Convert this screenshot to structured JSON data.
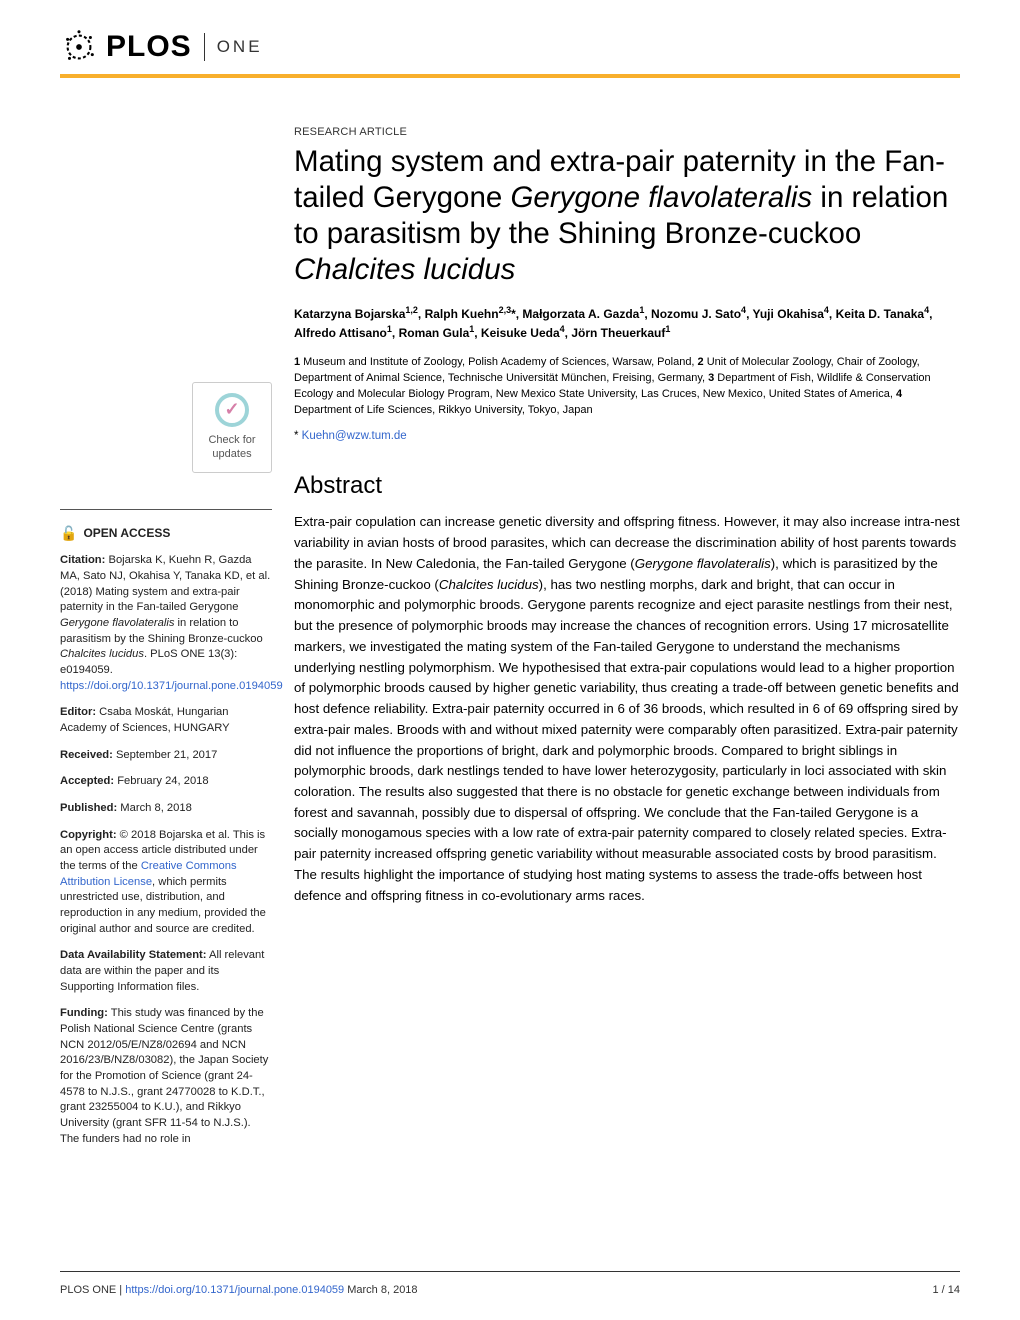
{
  "brand": {
    "plos": "PLOS",
    "one": "ONE",
    "accent_color": "#f8af2c"
  },
  "check_updates": {
    "line1": "Check for",
    "line2": "updates"
  },
  "open_access": "OPEN ACCESS",
  "citation": {
    "label": "Citation:",
    "text": " Bojarska K, Kuehn R, Gazda MA, Sato NJ, Okahisa Y, Tanaka KD, et al. (2018) Mating system and extra-pair paternity in the Fan-tailed Gerygone ",
    "italic1": "Gerygone flavolateralis",
    "text2": " in relation to parasitism by the Shining Bronze-cuckoo ",
    "italic2": "Chalcites lucidus",
    "text3": ". PLoS ONE 13(3): e0194059. ",
    "link": "https://doi.org/10.1371/journal.pone.0194059"
  },
  "editor": {
    "label": "Editor:",
    "text": " Csaba Moskát, Hungarian Academy of Sciences, HUNGARY"
  },
  "received": {
    "label": "Received:",
    "text": " September 21, 2017"
  },
  "accepted": {
    "label": "Accepted:",
    "text": " February 24, 2018"
  },
  "published": {
    "label": "Published:",
    "text": " March 8, 2018"
  },
  "copyright": {
    "label": "Copyright:",
    "text1": " © 2018 Bojarska et al. This is an open access article distributed under the terms of the ",
    "link": "Creative Commons Attribution License",
    "text2": ", which permits unrestricted use, distribution, and reproduction in any medium, provided the original author and source are credited."
  },
  "data_avail": {
    "label": "Data Availability Statement:",
    "text": " All relevant data are within the paper and its Supporting Information files."
  },
  "funding": {
    "label": "Funding:",
    "text": " This study was financed by the Polish National Science Centre (grants NCN 2012/05/E/NZ8/02694 and NCN 2016/23/B/NZ8/03082), the Japan Society for the Promotion of Science (grant 24-4578 to N.J.S., grant 24770028 to K.D.T., grant 23255004 to K.U.), and Rikkyo University (grant SFR 11-54 to N.J.S.). The funders had no role in"
  },
  "article_type": "RESEARCH ARTICLE",
  "title": {
    "p1": "Mating system and extra-pair paternity in the Fan-tailed Gerygone ",
    "i1": "Gerygone flavolateralis",
    "p2": " in relation to parasitism by the Shining Bronze-cuckoo ",
    "i2": "Chalcites lucidus"
  },
  "authors_html": "Katarzyna Bojarska<sup>1,2</sup>, Ralph Kuehn<sup>2,3</sup>*, Małgorzata A. Gazda<sup>1</sup>, Nozomu J. Sato<sup>4</sup>, Yuji Okahisa<sup>4</sup>, Keita D. Tanaka<sup>4</sup>, Alfredo Attisano<sup>1</sup>, Roman Gula<sup>1</sup>, Keisuke Ueda<sup>4</sup>, Jörn Theuerkauf<sup>1</sup>",
  "affiliations_html": "<strong>1</strong> Museum and Institute of Zoology, Polish Academy of Sciences, Warsaw, Poland, <strong>2</strong> Unit of Molecular Zoology, Chair of Zoology, Department of Animal Science, Technische Universität München, Freising, Germany, <strong>3</strong> Department of Fish, Wildlife & Conservation Ecology and Molecular Biology Program, New Mexico State University, Las Cruces, New Mexico, United States of America, <strong>4</strong> Department of Life Sciences, Rikkyo University, Tokyo, Japan",
  "corresponding": {
    "star": "* ",
    "email": "Kuehn@wzw.tum.de"
  },
  "abstract_heading": "Abstract",
  "abstract": {
    "p1": "Extra-pair copulation can increase genetic diversity and offspring fitness. However, it may also increase intra-nest variability in avian hosts of brood parasites, which can decrease the discrimination ability of host parents towards the parasite. In New Caledonia, the Fan-tailed Gerygone (",
    "i1": "Gerygone flavolateralis",
    "p2": "), which is parasitized by the Shining Bronze-cuckoo (",
    "i2": "Chalcites lucidus",
    "p3": "), has two nestling morphs, dark and bright, that can occur in monomorphic and polymorphic broods. Gerygone parents recognize and eject parasite nestlings from their nest, but the presence of polymorphic broods may increase the chances of recognition errors. Using 17 microsatellite markers, we investigated the mating system of the Fan-tailed Gerygone to understand the mechanisms underlying nestling polymorphism. We hypothesised that extra-pair copulations would lead to a higher proportion of polymorphic broods caused by higher genetic variability, thus creating a trade-off between genetic benefits and host defence reliability. Extra-pair paternity occurred in 6 of 36 broods, which resulted in 6 of 69 offspring sired by extra-pair males. Broods with and without mixed paternity were comparably often parasitized. Extra-pair paternity did not influence the proportions of bright, dark and polymorphic broods. Compared to bright siblings in polymorphic broods, dark nestlings tended to have lower heterozygosity, particularly in loci associated with skin coloration. The results also suggested that there is no obstacle for genetic exchange between individuals from forest and savannah, possibly due to dispersal of offspring. We conclude that the Fan-tailed Gerygone is a socially monogamous species with a low rate of extra-pair paternity compared to closely related species. Extra-pair paternity increased offspring genetic variability without measurable associated costs by brood parasitism. The results highlight the importance of studying host mating systems to assess the trade-offs between host defence and offspring fitness in co-evolutionary arms races."
  },
  "footer": {
    "journal": "PLOS ONE | ",
    "doi": "https://doi.org/10.1371/journal.pone.0194059",
    "date": "   March 8, 2018",
    "page": "1 / 14"
  }
}
